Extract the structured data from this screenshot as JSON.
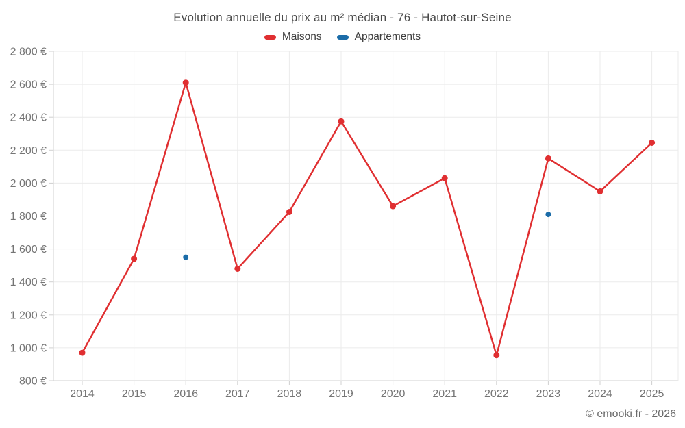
{
  "title": "Evolution annuelle du prix au m² médian - 76 - Hautot-sur-Seine",
  "footer": "© emooki.fr - 2026",
  "legend": [
    {
      "label": "Maisons",
      "color": "#e02f31"
    },
    {
      "label": "Appartements",
      "color": "#1b6ca8"
    }
  ],
  "colors": {
    "maisons": "#e02f31",
    "appartements": "#1b6ca8",
    "gridline": "#ebebeb",
    "axis": "#d0d0d0",
    "tick_label": "#757575"
  },
  "chart_data": {
    "type": "line",
    "title": "Evolution annuelle du prix au m² médian - 76 - Hautot-sur-Seine",
    "x": [
      2014,
      2015,
      2016,
      2017,
      2018,
      2019,
      2020,
      2021,
      2022,
      2023,
      2024,
      2025
    ],
    "series": [
      {
        "name": "Maisons",
        "color": "#e02f31",
        "style": "line-with-markers",
        "values": [
          970,
          1540,
          2610,
          1480,
          1825,
          2375,
          1860,
          2030,
          955,
          2150,
          1950,
          2245
        ]
      },
      {
        "name": "Appartements",
        "color": "#1b6ca8",
        "style": "markers-only",
        "values": [
          null,
          null,
          1550,
          null,
          null,
          null,
          null,
          null,
          null,
          1810,
          null,
          null
        ]
      }
    ],
    "ylim": [
      800,
      2800
    ],
    "ytick_step": 200,
    "ytick_labels": [
      "800 €",
      "1 000 €",
      "1 200 €",
      "1 400 €",
      "1 600 €",
      "1 800 €",
      "2 000 €",
      "2 200 €",
      "2 400 €",
      "2 600 €",
      "2 800 €"
    ],
    "xlabel": "",
    "ylabel": "",
    "grid": true,
    "legend_position": "top-center"
  }
}
